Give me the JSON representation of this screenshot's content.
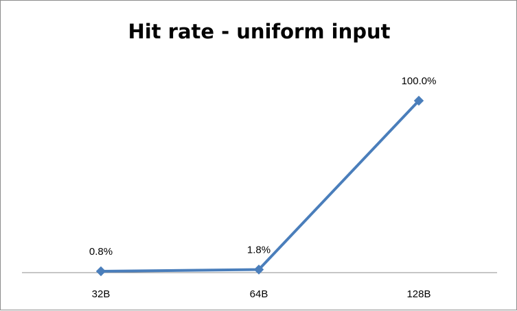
{
  "chart_data": {
    "type": "line",
    "title": "Hit rate - uniform input",
    "xlabel": "",
    "ylabel": "",
    "categories": [
      "32B",
      "64B",
      "128B"
    ],
    "series": [
      {
        "values": [
          0.8,
          1.8,
          100.0
        ],
        "labels": [
          "0.8%",
          "1.8%",
          "100.0%"
        ],
        "color": "#4a7ebb",
        "marker": "diamond"
      }
    ],
    "ylim": [
      0,
      100
    ],
    "grid": false,
    "legend": "none"
  }
}
